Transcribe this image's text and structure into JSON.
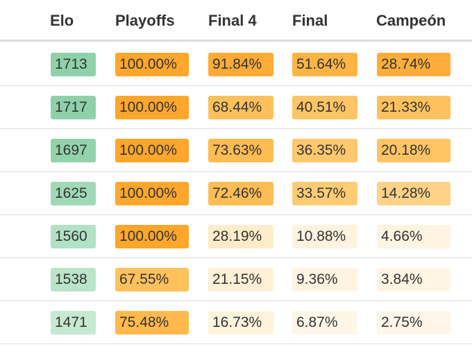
{
  "columns": [
    "Elo",
    "Playoffs",
    "Final 4",
    "Final",
    "Campeón"
  ],
  "colors": {
    "elo": [
      "#8fd1a9",
      "#90d2aa",
      "#93d3ac",
      "#a0d9b6",
      "#b3e1c4",
      "#bae4c9",
      "#c8eace"
    ],
    "p100": "#ffa62c",
    "p91": "#ffaa35",
    "p75": "#ffb94d",
    "p73": "#ffbc52",
    "p72": "#ffbd54",
    "p68": "#ffc05b",
    "p67": "#ffc15c",
    "p51": "#ffb443",
    "p40": "#ffc465",
    "p36": "#ffc86c",
    "p33": "#ffcc74",
    "p28": "#ffad3a",
    "p28b": "#fff0d6",
    "p21": "#ffc15d",
    "p21b": "#fff3dc",
    "p20": "#ffc464",
    "p16": "#fff5e3",
    "p14": "#ffd287",
    "p10": "#fff3df",
    "p9": "#fff4e2",
    "p6": "#fff6e8",
    "p4": "#fff4e1",
    "p3": "#fff5e4",
    "p2": "#fff6e9"
  },
  "rows": [
    {
      "elo": "1713",
      "playoffs": "100.00%",
      "final4": "91.84%",
      "final": "51.64%",
      "campeon": "28.74%",
      "c": [
        "#8fd1a9",
        "#ffa62c",
        "#ffab36",
        "#ffb443",
        "#ffad3a"
      ]
    },
    {
      "elo": "1717",
      "playoffs": "100.00%",
      "final4": "68.44%",
      "final": "40.51%",
      "campeon": "21.33%",
      "c": [
        "#8ed1a8",
        "#ffa62c",
        "#ffc05b",
        "#ffc465",
        "#ffc15d"
      ]
    },
    {
      "elo": "1697",
      "playoffs": "100.00%",
      "final4": "73.63%",
      "final": "36.35%",
      "campeon": "20.18%",
      "c": [
        "#93d3ac",
        "#ffa62c",
        "#ffbc52",
        "#ffc86c",
        "#ffc464"
      ]
    },
    {
      "elo": "1625",
      "playoffs": "100.00%",
      "final4": "72.46%",
      "final": "33.57%",
      "campeon": "14.28%",
      "c": [
        "#a1d9b7",
        "#ffa62c",
        "#ffbd54",
        "#ffcc74",
        "#ffd287"
      ]
    },
    {
      "elo": "1560",
      "playoffs": "100.00%",
      "final4": "28.19%",
      "final": "10.88%",
      "campeon": "4.66%",
      "c": [
        "#b2e1c4",
        "#ffa62c",
        "#ffecc9",
        "#fff3df",
        "#fff4e1"
      ]
    },
    {
      "elo": "1538",
      "playoffs": "67.55%",
      "final4": "21.15%",
      "final": "9.36%",
      "campeon": "3.84%",
      "c": [
        "#b9e4c9",
        "#ffc15c",
        "#fff0d6",
        "#fff4e2",
        "#fff5e4"
      ]
    },
    {
      "elo": "1471",
      "playoffs": "75.48%",
      "final4": "16.73%",
      "final": "6.87%",
      "campeon": "2.75%",
      "c": [
        "#c6e9d1",
        "#ffb94d",
        "#fff3dc",
        "#fff6e8",
        "#fff6e9"
      ]
    }
  ]
}
